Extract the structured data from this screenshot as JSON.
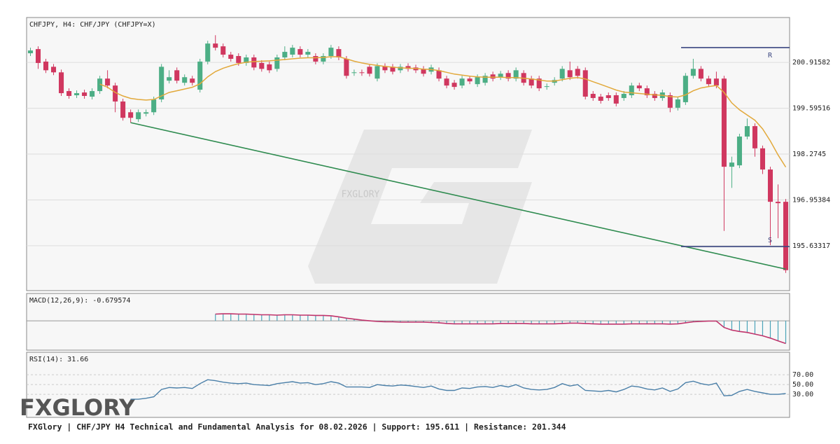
{
  "logo": "FXGLORY",
  "footer": "FXGlory | CHF/JPY H4 Technical and Fundamental Analysis for 08.02.2026 | Support: 195.611 | Resistance: 201.344",
  "chart_data": [
    {
      "type": "candlestick",
      "title": "CHFJPY, H4: CHF/JPY (CHFJPY=X)",
      "watermark": "FXGLORY",
      "up_color": "#4cae85",
      "down_color": "#d0375f",
      "ylim": [
        194.34,
        202.21
      ],
      "yticks": [
        200.91582,
        199.59516,
        198.2745,
        196.95384,
        195.63317
      ],
      "grid": true,
      "open": [
        201.18,
        201.3,
        200.94,
        200.79,
        200.63,
        200.09,
        199.97,
        200.05,
        199.93,
        200.09,
        200.45,
        200.25,
        199.79,
        199.48,
        199.28,
        199.44,
        199.48,
        199.85,
        200.39,
        200.69,
        200.33,
        200.45,
        200.13,
        200.94,
        201.46,
        201.38,
        201.14,
        201.1,
        200.9,
        201.06,
        200.9,
        200.86,
        200.73,
        201.06,
        201.14,
        201.3,
        201.14,
        201.1,
        200.94,
        201.1,
        201.3,
        201.02,
        200.61,
        200.63,
        200.79,
        200.45,
        200.81,
        200.79,
        200.69,
        200.81,
        200.77,
        200.73,
        200.65,
        200.69,
        200.45,
        200.33,
        200.25,
        200.45,
        200.29,
        200.33,
        200.57,
        200.49,
        200.61,
        200.45,
        200.61,
        200.45,
        200.45,
        200.21,
        200.33,
        200.45,
        200.69,
        200.73,
        200.69,
        200.01,
        199.93,
        199.97,
        199.97,
        199.89,
        199.97,
        200.25,
        200.17,
        200.01,
        199.89,
        199.97,
        199.61,
        199.77,
        200.53,
        200.73,
        200.45,
        200.45,
        200.45,
        197.91,
        197.95,
        198.78,
        199.08,
        198.44,
        197.83,
        196.9,
        196.9
      ],
      "high": [
        201.34,
        201.38,
        201.02,
        200.87,
        200.71,
        200.17,
        200.11,
        200.13,
        200.17,
        200.53,
        200.69,
        200.33,
        199.87,
        199.56,
        199.56,
        199.56,
        199.93,
        200.87,
        200.69,
        200.77,
        200.57,
        200.53,
        201.02,
        201.54,
        201.7,
        201.46,
        201.22,
        201.18,
        201.14,
        201.14,
        200.98,
        200.94,
        201.14,
        201.38,
        201.42,
        201.38,
        201.3,
        201.18,
        201.18,
        201.42,
        201.38,
        201.1,
        200.71,
        200.71,
        200.87,
        200.89,
        200.89,
        200.87,
        200.87,
        200.89,
        200.85,
        200.81,
        200.85,
        200.77,
        200.53,
        200.41,
        200.53,
        200.53,
        200.57,
        200.61,
        200.65,
        200.67,
        200.69,
        200.77,
        200.69,
        200.53,
        200.53,
        200.31,
        200.49,
        200.81,
        200.94,
        200.81,
        200.77,
        200.09,
        200.01,
        200.05,
        200.05,
        200.09,
        200.33,
        200.33,
        200.25,
        200.09,
        200.13,
        200.05,
        199.93,
        200.61,
        201.02,
        200.81,
        200.53,
        200.65,
        200.53,
        198.2,
        198.86,
        199.3,
        199.16,
        198.52,
        197.91,
        197.4,
        196.98
      ],
      "low": [
        201.1,
        200.73,
        200.61,
        200.55,
        199.95,
        199.87,
        199.89,
        199.87,
        199.85,
        200.01,
        200.17,
        199.48,
        199.24,
        199.18,
        199.2,
        199.36,
        199.4,
        199.77,
        200.31,
        200.31,
        200.25,
        200.25,
        200.05,
        200.86,
        201.26,
        201.06,
        200.94,
        200.82,
        200.82,
        200.69,
        200.65,
        200.61,
        200.65,
        200.98,
        201.06,
        201.06,
        201.06,
        200.86,
        200.86,
        201.02,
        200.98,
        200.45,
        200.53,
        200.53,
        200.51,
        200.37,
        200.61,
        200.57,
        200.61,
        200.65,
        200.61,
        200.51,
        200.57,
        200.37,
        200.17,
        200.13,
        200.17,
        200.29,
        200.21,
        200.25,
        200.37,
        200.41,
        200.37,
        200.37,
        200.25,
        200.17,
        200.09,
        200.13,
        200.25,
        200.37,
        200.41,
        200.45,
        199.85,
        199.81,
        199.73,
        199.81,
        199.65,
        199.81,
        199.89,
        200.09,
        199.89,
        199.81,
        199.81,
        199.48,
        199.53,
        199.69,
        200.45,
        200.37,
        200.21,
        200.17,
        196.06,
        197.3,
        197.87,
        198.7,
        198.2,
        197.7,
        195.65,
        195.85,
        194.85
      ],
      "close": [
        201.26,
        200.9,
        200.69,
        200.63,
        200.03,
        199.95,
        200.03,
        199.95,
        200.09,
        200.45,
        200.25,
        199.79,
        199.32,
        199.32,
        199.48,
        199.48,
        199.85,
        200.79,
        200.49,
        200.39,
        200.49,
        200.33,
        200.94,
        201.46,
        201.34,
        201.14,
        201.02,
        200.9,
        201.06,
        200.77,
        200.73,
        200.69,
        201.06,
        201.22,
        201.34,
        201.14,
        201.22,
        200.94,
        201.1,
        201.34,
        201.06,
        200.53,
        200.63,
        200.61,
        200.59,
        200.81,
        200.69,
        200.65,
        200.79,
        200.73,
        200.69,
        200.59,
        200.77,
        200.45,
        200.25,
        200.21,
        200.45,
        200.37,
        200.49,
        200.53,
        200.45,
        200.59,
        200.45,
        200.69,
        200.33,
        200.25,
        200.17,
        200.23,
        200.41,
        200.73,
        200.49,
        200.53,
        199.93,
        199.89,
        199.81,
        199.89,
        199.73,
        200.01,
        200.25,
        200.17,
        199.97,
        199.89,
        200.05,
        199.61,
        199.85,
        200.53,
        200.73,
        200.45,
        200.29,
        200.25,
        197.91,
        198.03,
        198.78,
        199.08,
        198.44,
        197.83,
        196.9,
        196.86,
        194.93
      ],
      "ma": {
        "color": "#e2a93b",
        "values": [
          null,
          null,
          null,
          null,
          null,
          null,
          null,
          null,
          null,
          200.29,
          200.2,
          200.05,
          199.95,
          199.88,
          199.85,
          199.83,
          199.85,
          199.95,
          200.05,
          200.1,
          200.15,
          200.2,
          200.3,
          200.5,
          200.65,
          200.75,
          200.82,
          200.88,
          200.92,
          200.94,
          200.95,
          200.96,
          200.98,
          201.0,
          201.02,
          201.04,
          201.05,
          201.05,
          201.06,
          201.08,
          201.08,
          201.02,
          200.95,
          200.9,
          200.86,
          200.83,
          200.8,
          200.78,
          200.76,
          200.75,
          200.74,
          200.72,
          200.71,
          200.68,
          200.63,
          200.58,
          200.55,
          200.52,
          200.5,
          200.49,
          200.49,
          200.49,
          200.48,
          200.48,
          200.46,
          200.44,
          200.41,
          200.38,
          200.38,
          200.42,
          200.46,
          200.48,
          200.44,
          200.36,
          200.28,
          200.2,
          200.12,
          200.06,
          200.04,
          200.02,
          200.0,
          199.98,
          199.97,
          199.93,
          199.92,
          199.98,
          200.1,
          200.18,
          200.22,
          200.25,
          200.05,
          199.75,
          199.55,
          199.4,
          199.25,
          199.0,
          198.65,
          198.25,
          197.9
        ]
      },
      "trendline": {
        "color": "#2e8b4f",
        "points": [
          [
            13,
            199.18
          ],
          [
            98,
            194.96
          ]
        ]
      },
      "levels": {
        "color": "#3a4680",
        "items": [
          {
            "label": "R",
            "value": 201.344
          },
          {
            "label": "S",
            "value": 195.611
          }
        ]
      }
    },
    {
      "type": "macd",
      "title": "MACD(12,26,9): -0.679574",
      "bar_color": "#4aa3b8",
      "line_color": "#c0336b",
      "ylim": [
        -0.88,
        0.82
      ],
      "values": [
        null,
        null,
        null,
        null,
        null,
        null,
        null,
        null,
        null,
        null,
        null,
        null,
        null,
        null,
        null,
        null,
        null,
        null,
        null,
        null,
        null,
        null,
        null,
        null,
        0.2,
        0.21,
        0.21,
        0.2,
        0.2,
        0.19,
        0.18,
        0.18,
        0.17,
        0.18,
        0.18,
        0.17,
        0.17,
        0.16,
        0.16,
        0.15,
        0.12,
        0.08,
        0.05,
        0.02,
        0.0,
        -0.02,
        -0.03,
        -0.03,
        -0.04,
        -0.04,
        -0.04,
        -0.04,
        -0.05,
        -0.06,
        -0.08,
        -0.09,
        -0.09,
        -0.09,
        -0.09,
        -0.09,
        -0.09,
        -0.08,
        -0.08,
        -0.08,
        -0.08,
        -0.09,
        -0.09,
        -0.09,
        -0.09,
        -0.08,
        -0.07,
        -0.07,
        -0.08,
        -0.09,
        -0.1,
        -0.1,
        -0.1,
        -0.1,
        -0.09,
        -0.09,
        -0.09,
        -0.09,
        -0.09,
        -0.1,
        -0.09,
        -0.06,
        -0.03,
        -0.02,
        -0.01,
        -0.01,
        -0.2,
        -0.28,
        -0.32,
        -0.35,
        -0.4,
        -0.45,
        -0.52,
        -0.6,
        -0.679574
      ]
    },
    {
      "type": "rsi",
      "title": "RSI(14): 31.66",
      "color": "#4a7fa8",
      "ylim": [
        -17,
        116
      ],
      "yticks": [
        {
          "value": 70,
          "label": "70.00"
        },
        {
          "value": 50,
          "label": "50.00"
        },
        {
          "value": 30,
          "label": "30.00"
        }
      ],
      "values": [
        null,
        null,
        null,
        null,
        null,
        null,
        null,
        null,
        null,
        null,
        null,
        null,
        null,
        20,
        20,
        22,
        25,
        40,
        44,
        43,
        44,
        42,
        52,
        60,
        58,
        55,
        53,
        52,
        53,
        50,
        49,
        48,
        52,
        54,
        56,
        53,
        54,
        50,
        52,
        56,
        53,
        45,
        45,
        45,
        44,
        50,
        48,
        47,
        49,
        48,
        46,
        44,
        47,
        41,
        38,
        38,
        43,
        42,
        45,
        46,
        44,
        48,
        45,
        50,
        43,
        40,
        39,
        40,
        44,
        52,
        47,
        50,
        38,
        37,
        36,
        38,
        35,
        40,
        47,
        45,
        41,
        39,
        43,
        36,
        41,
        54,
        57,
        52,
        49,
        53,
        27,
        28,
        36,
        40,
        36,
        33,
        30,
        30,
        31.66
      ]
    }
  ]
}
